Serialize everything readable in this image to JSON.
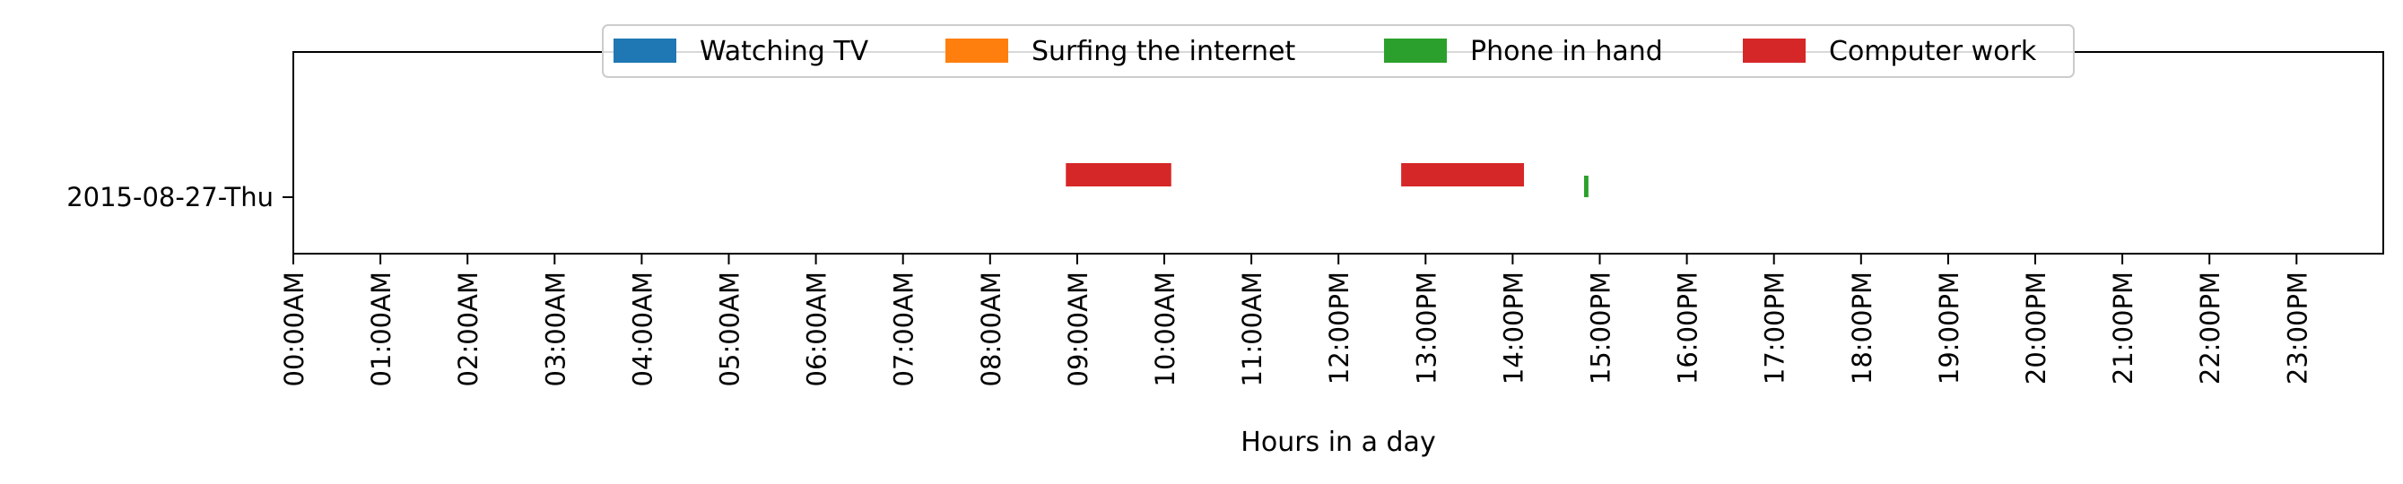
{
  "chart_data": {
    "type": "timeline",
    "xlabel": "Hours in a day",
    "xlim": [
      0,
      24
    ],
    "x_ticks": [
      "00:00AM",
      "01:00AM",
      "02:00AM",
      "03:00AM",
      "04:00AM",
      "05:00AM",
      "06:00AM",
      "07:00AM",
      "08:00AM",
      "09:00AM",
      "10:00AM",
      "11:00AM",
      "12:00PM",
      "13:00PM",
      "14:00PM",
      "15:00PM",
      "16:00PM",
      "17:00PM",
      "18:00PM",
      "19:00PM",
      "20:00PM",
      "21:00PM",
      "22:00PM",
      "23:00PM"
    ],
    "categories": [
      "2015-08-27-Thu"
    ],
    "legend_position": "top-center",
    "grid": false,
    "series": [
      {
        "name": "Watching TV",
        "color": "#1f77b4",
        "intervals": []
      },
      {
        "name": "Surfing the internet",
        "color": "#ff7f0e",
        "intervals": []
      },
      {
        "name": "Phone in hand",
        "color": "#2ca02c",
        "intervals": [
          {
            "day": "2015-08-27-Thu",
            "start": 14.82,
            "end": 14.87
          }
        ]
      },
      {
        "name": "Computer work",
        "color": "#d62728",
        "intervals": [
          {
            "day": "2015-08-27-Thu",
            "start": 8.87,
            "end": 10.08
          },
          {
            "day": "2015-08-27-Thu",
            "start": 12.72,
            "end": 14.13
          }
        ]
      }
    ]
  }
}
